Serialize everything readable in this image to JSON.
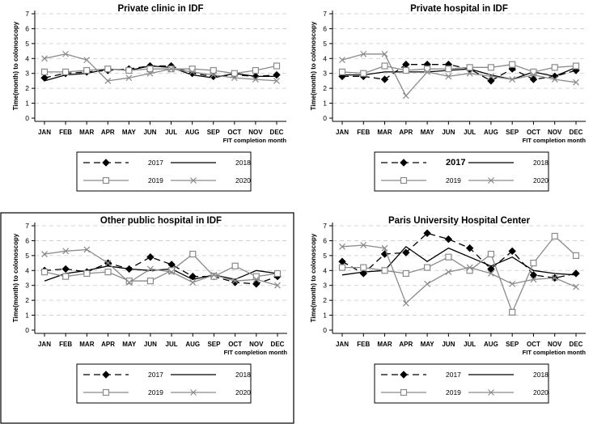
{
  "chart_data": [
    {
      "type": "line",
      "title": "Private clinic in IDF",
      "xlabel": "FIT completion month",
      "ylabel": "Time(month) to colonoscopy",
      "ylim": [
        0,
        7
      ],
      "yticks": [
        "0",
        "1",
        "2",
        "3",
        "4",
        "5",
        "6",
        "7"
      ],
      "categories": [
        "JAN",
        "FEB",
        "MAR",
        "APR",
        "MAY",
        "JUN",
        "JUL",
        "AUG",
        "SEP",
        "OCT",
        "NOV",
        "DEC"
      ],
      "grid": true,
      "legend": "bottom",
      "series": [
        {
          "name": "2017",
          "values": [
            2.7,
            3.0,
            3.1,
            3.2,
            3.3,
            3.5,
            3.5,
            3.0,
            2.8,
            2.9,
            2.8,
            2.9
          ]
        },
        {
          "name": "2018",
          "values": [
            2.5,
            2.9,
            3.0,
            3.3,
            3.2,
            3.5,
            3.4,
            2.9,
            2.7,
            3.0,
            2.8,
            2.8
          ]
        },
        {
          "name": "2019",
          "values": [
            3.1,
            3.1,
            3.2,
            3.3,
            3.2,
            3.3,
            3.3,
            3.3,
            3.2,
            3.0,
            3.2,
            3.5
          ]
        },
        {
          "name": "2020",
          "values": [
            4.0,
            4.3,
            3.9,
            2.5,
            2.7,
            3.0,
            3.3,
            3.1,
            2.9,
            2.7,
            2.6,
            2.5
          ]
        }
      ]
    },
    {
      "type": "line",
      "title": "Private hospital in IDF",
      "xlabel": "FIT completion month",
      "ylabel": "Time(month) to colonoscopy",
      "ylim": [
        0,
        7
      ],
      "yticks": [
        "0",
        "1",
        "2",
        "3",
        "4",
        "5",
        "6",
        "7"
      ],
      "categories": [
        "JAN",
        "FEB",
        "MAR",
        "APR",
        "MAY",
        "JUN",
        "JUL",
        "AUG",
        "SEP",
        "OCT",
        "NOV",
        "DEC"
      ],
      "grid": true,
      "legend": "bottom",
      "series": [
        {
          "name": "2017",
          "values": [
            2.8,
            2.8,
            2.6,
            3.6,
            3.6,
            3.6,
            3.3,
            2.5,
            3.3,
            2.6,
            2.8,
            3.2
          ]
        },
        {
          "name": "2018",
          "values": [
            2.9,
            2.9,
            3.1,
            3.1,
            3.1,
            3.2,
            3.3,
            2.9,
            2.6,
            3.1,
            2.8,
            3.4
          ]
        },
        {
          "name": "2019",
          "values": [
            3.1,
            3.0,
            3.5,
            3.2,
            3.3,
            3.3,
            3.4,
            3.4,
            3.6,
            3.1,
            3.4,
            3.5
          ]
        },
        {
          "name": "2020",
          "values": [
            3.9,
            4.3,
            4.3,
            1.5,
            3.1,
            2.8,
            3.0,
            2.8,
            2.6,
            2.9,
            2.6,
            2.4
          ]
        }
      ]
    },
    {
      "type": "line",
      "title": "Other public hospital in IDF",
      "xlabel": "FIT completion month",
      "ylabel": "Time(month) to colonoscopy",
      "ylim": [
        0,
        7
      ],
      "yticks": [
        "0",
        "1",
        "2",
        "3",
        "4",
        "5",
        "6",
        "7"
      ],
      "categories": [
        "JAN",
        "FEB",
        "MAR",
        "APR",
        "MAY",
        "JUN",
        "JUL",
        "AUG",
        "SEP",
        "OCT",
        "NOV",
        "DEC"
      ],
      "grid": true,
      "legend": "bottom",
      "series": [
        {
          "name": "2017",
          "values": [
            4.0,
            4.1,
            3.9,
            4.5,
            4.1,
            4.9,
            4.4,
            3.6,
            3.6,
            3.2,
            3.1,
            3.6
          ]
        },
        {
          "name": "2018",
          "values": [
            3.3,
            3.8,
            4.0,
            4.3,
            4.1,
            4.0,
            4.1,
            3.4,
            3.7,
            3.4,
            4.0,
            3.8
          ]
        },
        {
          "name": "2019",
          "values": [
            3.9,
            3.6,
            3.8,
            3.9,
            3.3,
            3.3,
            4.0,
            5.1,
            3.6,
            4.3,
            3.6,
            3.8
          ]
        },
        {
          "name": "2020",
          "values": [
            5.1,
            5.3,
            5.4,
            4.5,
            3.2,
            4.1,
            3.9,
            3.2,
            3.7,
            3.3,
            3.4,
            3.0
          ]
        }
      ]
    },
    {
      "type": "line",
      "title": "Paris University Hospital Center",
      "xlabel": "FIT completion month",
      "ylabel": "Time(month) to colonoscopy",
      "ylim": [
        0,
        7
      ],
      "yticks": [
        "0",
        "1",
        "2",
        "3",
        "4",
        "5",
        "6",
        "7"
      ],
      "categories": [
        "JAN",
        "FEB",
        "MAR",
        "APR",
        "MAY",
        "JUN",
        "JUL",
        "AUG",
        "SEP",
        "OCT",
        "NOV",
        "DEC"
      ],
      "grid": true,
      "legend": "bottom",
      "series": [
        {
          "name": "2017",
          "values": [
            4.6,
            3.8,
            5.1,
            5.2,
            6.5,
            6.1,
            5.5,
            4.1,
            5.3,
            3.7,
            3.5,
            3.8
          ]
        },
        {
          "name": "2018",
          "values": [
            3.7,
            3.9,
            4.0,
            5.6,
            4.6,
            5.5,
            4.9,
            4.3,
            4.9,
            4.0,
            3.8,
            3.7
          ]
        },
        {
          "name": "2019",
          "values": [
            4.2,
            4.2,
            4.0,
            3.8,
            4.2,
            4.9,
            4.0,
            5.1,
            1.2,
            4.5,
            6.3,
            5.0
          ]
        },
        {
          "name": "2020",
          "values": [
            5.6,
            5.7,
            5.5,
            1.8,
            3.1,
            3.9,
            4.2,
            3.8,
            3.1,
            3.4,
            3.5,
            2.9
          ]
        }
      ]
    }
  ]
}
